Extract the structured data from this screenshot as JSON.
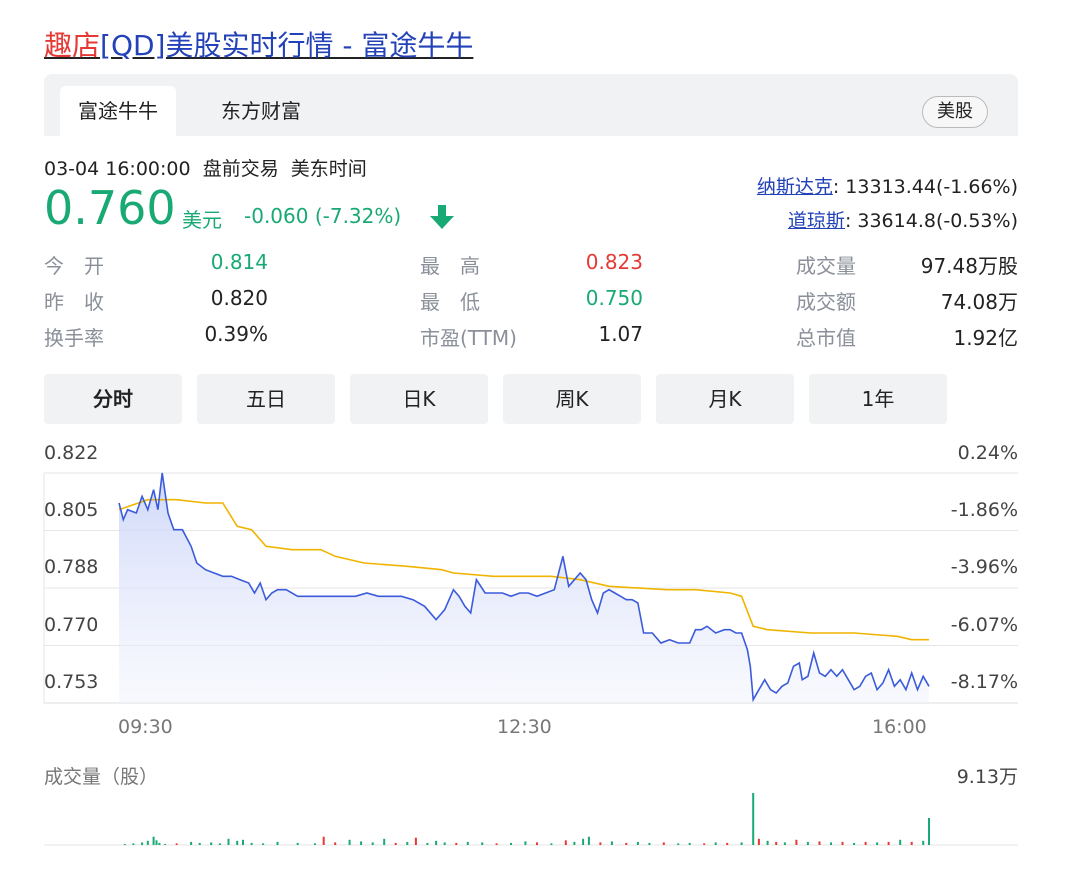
{
  "title": {
    "highlight": "趣店",
    "rest": "[QD]美股实时行情 - 富途牛牛"
  },
  "tabs": {
    "futu": "富途牛牛",
    "eastmoney": "东方财富",
    "market": "美股"
  },
  "quote": {
    "time": "03-04 16:00:00",
    "session": "盘前交易",
    "timezone": "美东时间",
    "price": "0.760",
    "currency": "美元",
    "change": "-0.060 (-7.32%)",
    "direction_icon": "arrow-down-icon"
  },
  "indices": [
    {
      "name": "纳斯达克",
      "value": ": 13313.44(-1.66%)"
    },
    {
      "name": "道琼斯",
      "value": ": 33614.8(-0.53%)"
    }
  ],
  "stats": {
    "open_label": "今　开",
    "open": "0.814",
    "prev_close_label": "昨　收",
    "prev_close": "0.820",
    "turnover_rate_label": "换手率",
    "turnover_rate": "0.39%",
    "high_label": "最　高",
    "high": "0.823",
    "low_label": "最　低",
    "low": "0.750",
    "pe_label": "市盈(TTM)",
    "pe": "1.07",
    "volume_label": "成交量",
    "volume": "97.48万股",
    "amount_label": "成交额",
    "amount": "74.08万",
    "market_cap_label": "总市值",
    "market_cap": "1.92亿"
  },
  "periods": [
    "分时",
    "五日",
    "日K",
    "周K",
    "月K",
    "1年"
  ],
  "active_period": "分时",
  "colors": {
    "price_line": "#3b5bdb",
    "avg_line": "#f0b400",
    "up": "#e53935",
    "down": "#19a974",
    "fill": "#e8ecfb"
  },
  "chart_data": {
    "type": "line",
    "y_ticks": [
      "0.822",
      "0.805",
      "0.788",
      "0.770",
      "0.753"
    ],
    "y_pct_ticks": [
      "0.24%",
      "-1.86%",
      "-3.96%",
      "-6.07%",
      "-8.17%"
    ],
    "ylim": [
      0.753,
      0.822
    ],
    "x_ticks": [
      "09:30",
      "12:30",
      "16:00"
    ],
    "volume_label": "成交量（股）",
    "volume_max_label": "9.13万",
    "series": [
      {
        "role": "price",
        "points": [
          [
            0,
            0.813
          ],
          [
            1.5,
            0.808
          ],
          [
            3,
            0.811
          ],
          [
            6,
            0.81
          ],
          [
            8,
            0.815
          ],
          [
            10,
            0.811
          ],
          [
            12,
            0.817
          ],
          [
            13.5,
            0.811
          ],
          [
            15,
            0.822
          ],
          [
            17,
            0.81
          ],
          [
            19,
            0.805
          ],
          [
            22,
            0.805
          ],
          [
            25,
            0.8
          ],
          [
            27,
            0.795
          ],
          [
            30,
            0.793
          ],
          [
            33,
            0.792
          ],
          [
            36,
            0.791
          ],
          [
            39,
            0.791
          ],
          [
            42,
            0.79
          ],
          [
            45,
            0.789
          ],
          [
            47,
            0.786
          ],
          [
            49,
            0.789
          ],
          [
            51,
            0.784
          ],
          [
            53,
            0.786
          ],
          [
            55,
            0.787
          ],
          [
            58,
            0.787
          ],
          [
            62,
            0.785
          ],
          [
            66,
            0.785
          ],
          [
            70,
            0.785
          ],
          [
            74,
            0.785
          ],
          [
            78,
            0.785
          ],
          [
            82,
            0.785
          ],
          [
            86,
            0.786
          ],
          [
            90,
            0.785
          ],
          [
            94,
            0.785
          ],
          [
            98,
            0.785
          ],
          [
            102,
            0.784
          ],
          [
            106,
            0.782
          ],
          [
            110,
            0.778
          ],
          [
            113,
            0.781
          ],
          [
            116,
            0.787
          ],
          [
            118,
            0.785
          ],
          [
            120,
            0.782
          ],
          [
            122,
            0.78
          ],
          [
            124,
            0.79
          ],
          [
            127,
            0.786
          ],
          [
            130,
            0.786
          ],
          [
            133,
            0.786
          ],
          [
            136,
            0.785
          ],
          [
            139,
            0.786
          ],
          [
            142,
            0.786
          ],
          [
            145,
            0.785
          ],
          [
            148,
            0.786
          ],
          [
            151,
            0.787
          ],
          [
            154,
            0.797
          ],
          [
            156,
            0.788
          ],
          [
            158,
            0.79
          ],
          [
            160,
            0.792
          ],
          [
            162,
            0.79
          ],
          [
            164,
            0.784
          ],
          [
            166,
            0.78
          ],
          [
            168,
            0.786
          ],
          [
            170,
            0.787
          ],
          [
            172,
            0.786
          ],
          [
            174,
            0.785
          ],
          [
            176,
            0.784
          ],
          [
            178,
            0.784
          ],
          [
            180,
            0.783
          ],
          [
            182,
            0.774
          ],
          [
            185,
            0.774
          ],
          [
            188,
            0.771
          ],
          [
            191,
            0.772
          ],
          [
            194,
            0.771
          ],
          [
            196,
            0.771
          ],
          [
            198,
            0.771
          ],
          [
            200,
            0.775
          ],
          [
            202,
            0.775
          ],
          [
            204,
            0.776
          ],
          [
            207,
            0.774
          ],
          [
            210,
            0.775
          ],
          [
            212,
            0.775
          ],
          [
            214,
            0.774
          ],
          [
            216,
            0.774
          ],
          [
            218,
            0.769
          ],
          [
            219,
            0.764
          ],
          [
            220,
            0.754
          ],
          [
            222,
            0.757
          ],
          [
            224,
            0.76
          ],
          [
            226,
            0.757
          ],
          [
            228,
            0.756
          ],
          [
            230,
            0.758
          ],
          [
            232,
            0.759
          ],
          [
            234,
            0.764
          ],
          [
            236,
            0.765
          ],
          [
            237,
            0.76
          ],
          [
            239,
            0.761
          ],
          [
            241,
            0.768
          ],
          [
            243,
            0.762
          ],
          [
            245,
            0.761
          ],
          [
            247,
            0.763
          ],
          [
            249,
            0.761
          ],
          [
            251,
            0.763
          ],
          [
            253,
            0.76
          ],
          [
            255,
            0.757
          ],
          [
            257,
            0.758
          ],
          [
            259,
            0.761
          ],
          [
            261,
            0.762
          ],
          [
            263,
            0.757
          ],
          [
            265,
            0.759
          ],
          [
            267,
            0.763
          ],
          [
            269,
            0.758
          ],
          [
            271,
            0.76
          ],
          [
            273,
            0.757
          ],
          [
            275,
            0.762
          ],
          [
            277,
            0.757
          ],
          [
            279,
            0.761
          ],
          [
            281,
            0.758
          ]
        ]
      },
      {
        "role": "average",
        "points": [
          [
            0,
            0.811
          ],
          [
            10,
            0.814
          ],
          [
            20,
            0.814
          ],
          [
            30,
            0.813
          ],
          [
            36,
            0.813
          ],
          [
            41,
            0.806
          ],
          [
            46,
            0.805
          ],
          [
            51,
            0.8
          ],
          [
            60,
            0.799
          ],
          [
            70,
            0.799
          ],
          [
            75,
            0.797
          ],
          [
            85,
            0.795
          ],
          [
            100,
            0.794
          ],
          [
            112,
            0.793
          ],
          [
            116,
            0.792
          ],
          [
            130,
            0.791
          ],
          [
            150,
            0.791
          ],
          [
            160,
            0.79
          ],
          [
            170,
            0.788
          ],
          [
            190,
            0.787
          ],
          [
            200,
            0.787
          ],
          [
            212,
            0.786
          ],
          [
            216,
            0.785
          ],
          [
            220,
            0.776
          ],
          [
            225,
            0.775
          ],
          [
            240,
            0.774
          ],
          [
            255,
            0.774
          ],
          [
            270,
            0.773
          ],
          [
            275,
            0.772
          ],
          [
            281,
            0.772
          ]
        ]
      }
    ],
    "volume": [
      [
        2,
        0.02,
        "down"
      ],
      [
        5,
        0.03,
        "down"
      ],
      [
        8,
        0.05,
        "down"
      ],
      [
        10,
        0.08,
        "down"
      ],
      [
        12,
        0.16,
        "down"
      ],
      [
        13,
        0.09,
        "down"
      ],
      [
        14,
        0.04,
        "down"
      ],
      [
        16,
        0.02,
        "down"
      ],
      [
        20,
        0.03,
        "up"
      ],
      [
        25,
        0.06,
        "down"
      ],
      [
        28,
        0.04,
        "down"
      ],
      [
        32,
        0.05,
        "down"
      ],
      [
        35,
        0.03,
        "down"
      ],
      [
        38,
        0.12,
        "down"
      ],
      [
        41,
        0.08,
        "down"
      ],
      [
        43,
        0.1,
        "down"
      ],
      [
        46,
        0.04,
        "down"
      ],
      [
        50,
        0.03,
        "down"
      ],
      [
        55,
        0.06,
        "down"
      ],
      [
        62,
        0.04,
        "down"
      ],
      [
        68,
        0.03,
        "down"
      ],
      [
        71,
        0.16,
        "up"
      ],
      [
        75,
        0.05,
        "up"
      ],
      [
        80,
        0.1,
        "down"
      ],
      [
        84,
        0.07,
        "down"
      ],
      [
        88,
        0.05,
        "down"
      ],
      [
        92,
        0.12,
        "down"
      ],
      [
        96,
        0.04,
        "up"
      ],
      [
        100,
        0.06,
        "down"
      ],
      [
        103,
        0.14,
        "up"
      ],
      [
        107,
        0.04,
        "down"
      ],
      [
        110,
        0.08,
        "down"
      ],
      [
        113,
        0.05,
        "down"
      ],
      [
        117,
        0.04,
        "up"
      ],
      [
        121,
        0.06,
        "down"
      ],
      [
        126,
        0.05,
        "down"
      ],
      [
        131,
        0.03,
        "up"
      ],
      [
        136,
        0.04,
        "down"
      ],
      [
        141,
        0.07,
        "down"
      ],
      [
        145,
        0.05,
        "up"
      ],
      [
        150,
        0.03,
        "down"
      ],
      [
        155,
        0.09,
        "up"
      ],
      [
        158,
        0.06,
        "down"
      ],
      [
        161,
        0.12,
        "down"
      ],
      [
        163,
        0.16,
        "down"
      ],
      [
        167,
        0.05,
        "up"
      ],
      [
        171,
        0.07,
        "down"
      ],
      [
        176,
        0.04,
        "up"
      ],
      [
        180,
        0.06,
        "down"
      ],
      [
        184,
        0.04,
        "down"
      ],
      [
        189,
        0.05,
        "up"
      ],
      [
        194,
        0.03,
        "down"
      ],
      [
        198,
        0.04,
        "down"
      ],
      [
        203,
        0.03,
        "up"
      ],
      [
        207,
        0.05,
        "down"
      ],
      [
        211,
        0.04,
        "up"
      ],
      [
        216,
        0.05,
        "down"
      ],
      [
        220,
        1.0,
        "down"
      ],
      [
        222,
        0.12,
        "up"
      ],
      [
        225,
        0.08,
        "down"
      ],
      [
        228,
        0.06,
        "up"
      ],
      [
        231,
        0.05,
        "down"
      ],
      [
        235,
        0.1,
        "up"
      ],
      [
        239,
        0.06,
        "down"
      ],
      [
        243,
        0.07,
        "up"
      ],
      [
        247,
        0.05,
        "down"
      ],
      [
        251,
        0.06,
        "up"
      ],
      [
        255,
        0.04,
        "down"
      ],
      [
        259,
        0.06,
        "up"
      ],
      [
        263,
        0.05,
        "down"
      ],
      [
        267,
        0.06,
        "up"
      ],
      [
        271,
        0.1,
        "down"
      ],
      [
        275,
        0.06,
        "up"
      ],
      [
        279,
        0.08,
        "down"
      ],
      [
        281,
        0.52,
        "down"
      ]
    ]
  }
}
